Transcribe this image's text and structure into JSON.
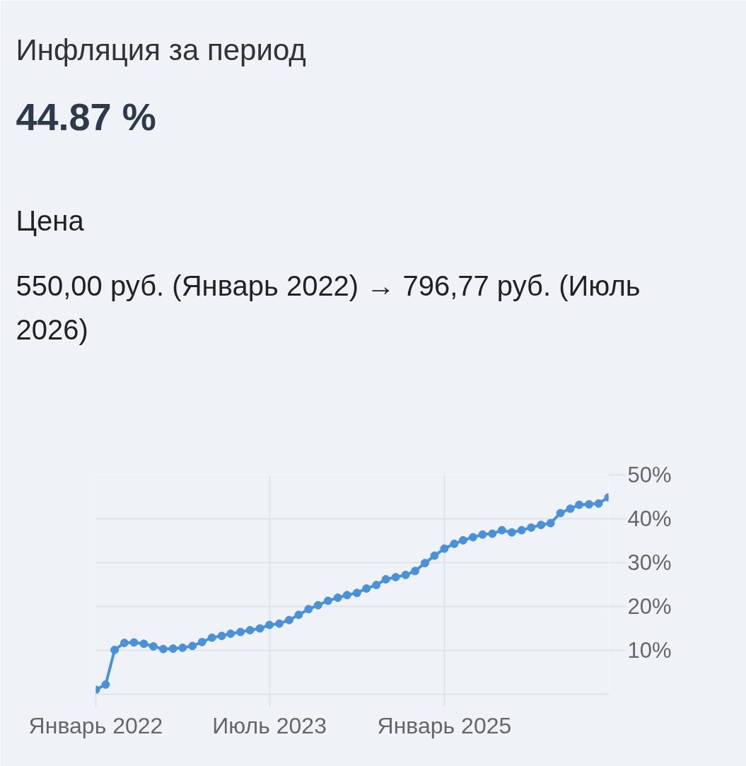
{
  "chart_data": {
    "type": "line",
    "title": "Инфляция за период",
    "subtitle": "44.87 %",
    "annotations": [
      "Цена",
      "550,00 руб. (Январь 2022) → 796,77 руб. (Июль 2026)"
    ],
    "x": [
      "2022-01",
      "2022-02",
      "2022-03",
      "2022-04",
      "2022-05",
      "2022-06",
      "2022-07",
      "2022-08",
      "2022-09",
      "2022-10",
      "2022-11",
      "2022-12",
      "2023-01",
      "2023-02",
      "2023-03",
      "2023-04",
      "2023-05",
      "2023-06",
      "2023-07",
      "2023-08",
      "2023-09",
      "2023-10",
      "2023-11",
      "2023-12",
      "2024-01",
      "2024-02",
      "2024-03",
      "2024-04",
      "2024-05",
      "2024-06",
      "2024-07",
      "2024-08",
      "2024-09",
      "2024-10",
      "2024-11",
      "2024-12",
      "2025-01",
      "2025-02",
      "2025-03",
      "2025-04",
      "2025-05",
      "2025-06",
      "2025-07",
      "2025-08",
      "2025-09",
      "2025-10",
      "2025-11",
      "2025-12",
      "2026-01",
      "2026-02",
      "2026-03",
      "2026-04",
      "2026-05",
      "2026-06"
    ],
    "series": [
      {
        "color": "#4a91db",
        "values": [
          1.0,
          2.2,
          10.1,
          11.7,
          11.8,
          11.5,
          10.9,
          10.3,
          10.4,
          10.6,
          11.0,
          11.9,
          12.9,
          13.3,
          13.8,
          14.2,
          14.6,
          15.0,
          15.8,
          16.1,
          16.9,
          18.1,
          19.4,
          20.3,
          21.3,
          22.0,
          22.6,
          23.1,
          24.1,
          24.9,
          26.2,
          26.7,
          27.2,
          28.1,
          29.9,
          31.6,
          33.2,
          34.3,
          35.1,
          35.8,
          36.4,
          36.6,
          37.4,
          36.9,
          37.4,
          38.0,
          38.6,
          39.0,
          41.3,
          42.3,
          43.2,
          43.3,
          43.5,
          44.87
        ]
      }
    ],
    "xlim": [
      "2022-01",
      "2026-06"
    ],
    "xticks": [
      {
        "value": "2022-01",
        "label": "Январь 2022"
      },
      {
        "value": "2023-07",
        "label": "Июль 2023"
      },
      {
        "value": "2025-01",
        "label": "Январь 2025"
      }
    ],
    "ylim": [
      0,
      50
    ],
    "yticks": [
      {
        "value": 10,
        "label": "10%"
      },
      {
        "value": 20,
        "label": "20%"
      },
      {
        "value": 30,
        "label": "30%"
      },
      {
        "value": 40,
        "label": "40%"
      },
      {
        "value": 50,
        "label": "50%"
      }
    ],
    "grid": true,
    "marker": "circle",
    "line_style": "solid"
  }
}
